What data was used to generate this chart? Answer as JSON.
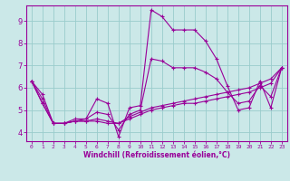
{
  "xlabel": "Windchill (Refroidissement éolien,°C)",
  "xlim": [
    -0.5,
    23.5
  ],
  "ylim": [
    3.6,
    9.7
  ],
  "xticks": [
    0,
    1,
    2,
    3,
    4,
    5,
    6,
    7,
    8,
    9,
    10,
    11,
    12,
    13,
    14,
    15,
    16,
    17,
    18,
    19,
    20,
    21,
    22,
    23
  ],
  "yticks": [
    4,
    5,
    6,
    7,
    8,
    9
  ],
  "background_color": "#cbe8e8",
  "line_color": "#990099",
  "grid_color": "#99cccc",
  "lines": [
    [
      6.3,
      5.7,
      4.4,
      4.4,
      4.6,
      4.6,
      5.5,
      5.3,
      3.8,
      5.1,
      5.2,
      9.5,
      9.2,
      8.6,
      8.6,
      8.6,
      8.1,
      7.3,
      6.1,
      5.0,
      5.1,
      6.3,
      5.1,
      6.9
    ],
    [
      6.3,
      5.5,
      4.4,
      4.4,
      4.5,
      4.6,
      4.9,
      4.8,
      4.1,
      4.8,
      5.0,
      7.3,
      7.2,
      6.9,
      6.9,
      6.9,
      6.7,
      6.4,
      5.8,
      5.3,
      5.4,
      6.1,
      5.6,
      6.9
    ],
    [
      6.3,
      5.3,
      4.4,
      4.4,
      4.5,
      4.5,
      4.6,
      4.5,
      4.4,
      4.7,
      4.9,
      5.1,
      5.2,
      5.3,
      5.4,
      5.5,
      5.6,
      5.7,
      5.8,
      5.9,
      6.0,
      6.2,
      6.4,
      6.9
    ],
    [
      6.3,
      5.3,
      4.4,
      4.4,
      4.5,
      4.5,
      4.5,
      4.4,
      4.4,
      4.6,
      4.8,
      5.0,
      5.1,
      5.2,
      5.3,
      5.3,
      5.4,
      5.5,
      5.6,
      5.7,
      5.8,
      6.0,
      6.2,
      6.9
    ]
  ]
}
